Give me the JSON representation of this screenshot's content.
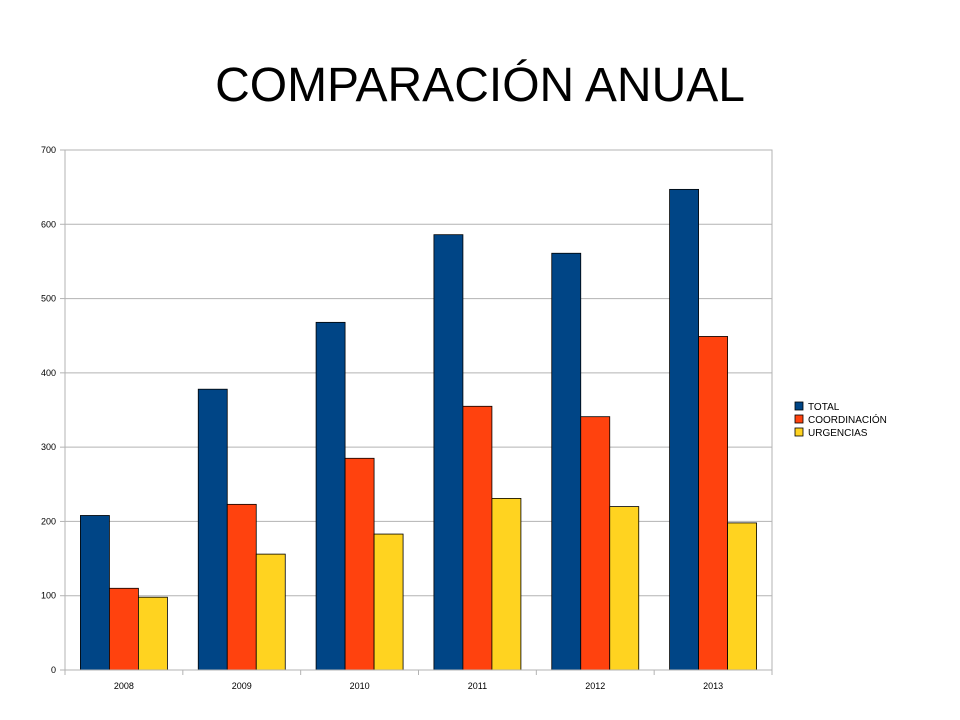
{
  "slide": {
    "title": "COMPARACIÓN ANUAL"
  },
  "chart_data": {
    "type": "bar",
    "title": "",
    "xlabel": "",
    "ylabel": "",
    "categories": [
      "2008",
      "2009",
      "2010",
      "2011",
      "2012",
      "2013"
    ],
    "series": [
      {
        "name": "TOTAL",
        "color": "#004586",
        "values": [
          208,
          378,
          468,
          586,
          561,
          647
        ]
      },
      {
        "name": "COORDINACIÓN",
        "color": "#ff420e",
        "values": [
          110,
          223,
          285,
          355,
          341,
          449
        ]
      },
      {
        "name": "URGENCIAS",
        "color": "#ffd320",
        "values": [
          98,
          156,
          183,
          231,
          220,
          198
        ]
      }
    ],
    "ylim": [
      0,
      700
    ],
    "yticks": [
      "0",
      "100",
      "200",
      "300",
      "400",
      "500",
      "600",
      "700"
    ],
    "grid": true,
    "legend_position": "right"
  }
}
